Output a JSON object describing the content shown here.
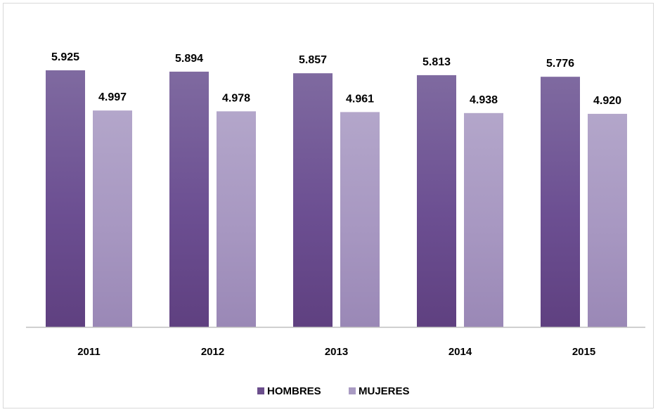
{
  "chart_data": {
    "type": "bar",
    "categories": [
      "2011",
      "2012",
      "2013",
      "2014",
      "2015"
    ],
    "series": [
      {
        "name": "HOMBRES",
        "values": [
          5925,
          5894,
          5857,
          5813,
          5776
        ],
        "labels": [
          "5.925",
          "5.894",
          "5.857",
          "5.813",
          "5.776"
        ],
        "color": "#6b4e8c"
      },
      {
        "name": "MUJERES",
        "values": [
          4997,
          4978,
          4961,
          4938,
          4920
        ],
        "labels": [
          "4.997",
          "4.978",
          "4.961",
          "4.938",
          "4.920"
        ],
        "color": "#a99bc3"
      }
    ],
    "title": "",
    "xlabel": "",
    "ylabel": "",
    "ylim": [
      0,
      6000
    ],
    "grid": false,
    "legend": "bottom"
  }
}
